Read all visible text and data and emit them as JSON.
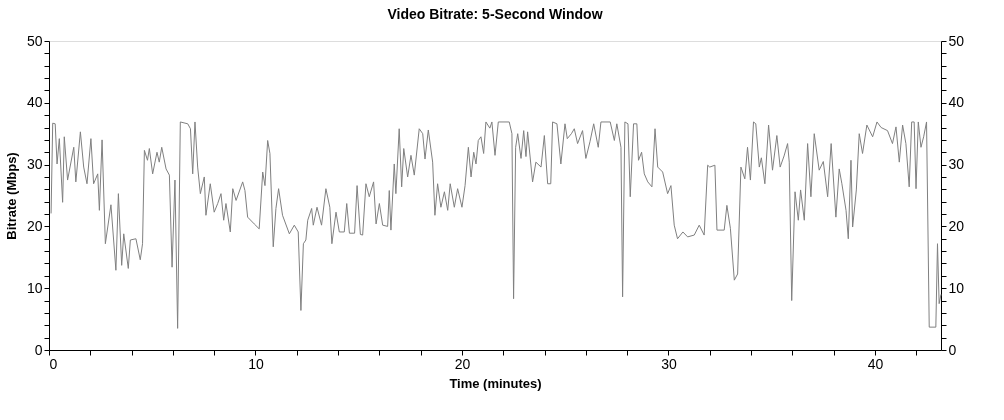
{
  "chart_data": {
    "type": "line",
    "title": "Video Bitrate: 5-Second Window",
    "xlabel": "Time (minutes)",
    "ylabel": "Bitrate (Mbps)",
    "xlim": [
      0,
      43.2
    ],
    "ylim": [
      0,
      50
    ],
    "y2lim": [
      0,
      50
    ],
    "xticks": [
      0,
      {
        "value": 2,
        "label": null
      },
      {
        "value": 4,
        "label": null
      },
      {
        "value": 6,
        "label": null
      },
      {
        "value": 8,
        "label": null
      },
      10,
      {
        "value": 12,
        "label": null
      },
      {
        "value": 14,
        "label": null
      },
      {
        "value": 16,
        "label": null
      },
      {
        "value": 18,
        "label": null
      },
      20,
      {
        "value": 22,
        "label": null
      },
      {
        "value": 24,
        "label": null
      },
      {
        "value": 26,
        "label": null
      },
      {
        "value": 28,
        "label": null
      },
      30,
      {
        "value": 32,
        "label": null
      },
      {
        "value": 34,
        "label": null
      },
      {
        "value": 36,
        "label": null
      },
      {
        "value": 38,
        "label": null
      },
      40,
      {
        "value": 42,
        "label": null
      }
    ],
    "yticks": [
      0,
      {
        "value": 2,
        "label": null
      },
      {
        "value": 4,
        "label": null
      },
      {
        "value": 6,
        "label": null
      },
      {
        "value": 8,
        "label": null
      },
      10,
      {
        "value": 12,
        "label": null
      },
      {
        "value": 14,
        "label": null
      },
      {
        "value": 16,
        "label": null
      },
      {
        "value": 18,
        "label": null
      },
      20,
      {
        "value": 22,
        "label": null
      },
      {
        "value": 24,
        "label": null
      },
      {
        "value": 26,
        "label": null
      },
      {
        "value": 28,
        "label": null
      },
      30,
      {
        "value": 32,
        "label": null
      },
      {
        "value": 34,
        "label": null
      },
      {
        "value": 36,
        "label": null
      },
      {
        "value": 38,
        "label": null
      },
      40,
      {
        "value": 42,
        "label": null
      },
      {
        "value": 44,
        "label": null
      },
      {
        "value": 46,
        "label": null
      },
      {
        "value": 48,
        "label": null
      },
      50
    ],
    "y2ticks": [
      0,
      {
        "value": 2,
        "label": null
      },
      {
        "value": 4,
        "label": null
      },
      {
        "value": 6,
        "label": null
      },
      {
        "value": 8,
        "label": null
      },
      10,
      {
        "value": 12,
        "label": null
      },
      {
        "value": 14,
        "label": null
      },
      {
        "value": 16,
        "label": null
      },
      {
        "value": 18,
        "label": null
      },
      20,
      {
        "value": 22,
        "label": null
      },
      {
        "value": 24,
        "label": null
      },
      {
        "value": 26,
        "label": null
      },
      {
        "value": 28,
        "label": null
      },
      30,
      {
        "value": 32,
        "label": null
      },
      {
        "value": 34,
        "label": null
      },
      {
        "value": 36,
        "label": null
      },
      {
        "value": 38,
        "label": null
      },
      40,
      {
        "value": 42,
        "label": null
      },
      {
        "value": 44,
        "label": null
      },
      {
        "value": 46,
        "label": null
      },
      {
        "value": 48,
        "label": null
      },
      50
    ],
    "grid": false,
    "legend": false,
    "marker": "none",
    "line_style": "solid",
    "series": [
      {
        "color": "#808080",
        "x": [
          0.1,
          0.18,
          0.3,
          0.39,
          0.5,
          0.66,
          0.74,
          0.9,
          1.2,
          1.3,
          1.52,
          1.68,
          1.84,
          2.03,
          2.16,
          2.36,
          2.44,
          2.57,
          2.73,
          3.0,
          3.24,
          3.36,
          3.52,
          3.62,
          3.84,
          3.94,
          4.21,
          4.42,
          4.53,
          4.62,
          4.77,
          4.86,
          5.02,
          5.23,
          5.34,
          5.46,
          5.67,
          5.83,
          5.96,
          6.1,
          6.23,
          6.36,
          6.72,
          6.85,
          6.96,
          7.07,
          7.2,
          7.33,
          7.52,
          7.6,
          7.81,
          8.0,
          8.17,
          8.33,
          8.46,
          8.57,
          8.78,
          8.9,
          9.06,
          9.38,
          9.49,
          9.62,
          9.94,
          10.18,
          10.35,
          10.46,
          10.59,
          10.7,
          10.86,
          10.99,
          11.12,
          11.31,
          11.64,
          11.88,
          12.07,
          12.2,
          12.32,
          12.44,
          12.53,
          12.72,
          12.8,
          12.98,
          13.2,
          13.41,
          13.6,
          13.7,
          13.9,
          14.06,
          14.3,
          14.42,
          14.55,
          14.8,
          14.92,
          15.08,
          15.19,
          15.35,
          15.51,
          15.72,
          15.84,
          16.0,
          16.16,
          16.4,
          16.48,
          16.56,
          16.72,
          16.8,
          16.96,
          17.08,
          17.18,
          17.37,
          17.53,
          17.69,
          17.93,
          18.1,
          18.21,
          18.37,
          18.58,
          18.69,
          18.82,
          18.98,
          19.15,
          19.31,
          19.43,
          19.63,
          19.79,
          20.0,
          20.15,
          20.31,
          20.44,
          20.57,
          20.68,
          20.79,
          20.92,
          21.05,
          21.16,
          21.35,
          21.45,
          21.6,
          21.76,
          22.29,
          22.42,
          22.5,
          22.6,
          22.7,
          22.86,
          22.99,
          23.1,
          23.18,
          23.42,
          23.58,
          23.83,
          23.99,
          24.15,
          24.3,
          24.39,
          24.6,
          24.79,
          24.99,
          25.1,
          25.3,
          25.44,
          25.6,
          25.84,
          26.0,
          26.2,
          26.38,
          26.6,
          26.73,
          27.18,
          27.38,
          27.5,
          27.7,
          27.78,
          27.89,
          28.04,
          28.15,
          28.31,
          28.47,
          28.55,
          28.7,
          28.83,
          29.0,
          29.2,
          29.35,
          29.48,
          29.72,
          29.96,
          30.12,
          30.28,
          30.44,
          30.7,
          30.93,
          31.25,
          31.49,
          31.73,
          31.9,
          32.0,
          32.25,
          32.35,
          32.7,
          32.83,
          33.0,
          33.19,
          33.35,
          33.51,
          33.7,
          33.83,
          33.97,
          34.12,
          34.23,
          34.4,
          34.5,
          34.67,
          34.85,
          35.04,
          35.25,
          35.41,
          35.6,
          35.77,
          35.85,
          35.97,
          36.13,
          36.29,
          36.4,
          36.58,
          36.74,
          36.9,
          37.06,
          37.3,
          37.5,
          37.71,
          37.88,
          38.11,
          38.27,
          38.4,
          38.6,
          38.71,
          38.84,
          38.92,
          39.1,
          39.24,
          39.4,
          39.61,
          39.89,
          40.1,
          40.3,
          40.61,
          40.85,
          41.02,
          41.18,
          41.34,
          41.5,
          41.66,
          41.78,
          41.9,
          41.99,
          42.1,
          42.23,
          42.36,
          42.5,
          42.63,
          42.95,
          43.03,
          43.11,
          43.2
        ],
        "values": [
          22.1,
          36.7,
          36.6,
          30.1,
          34.2,
          23.9,
          34.5,
          27.5,
          32.8,
          27.2,
          35.3,
          29.6,
          26.9,
          34.2,
          26.9,
          28.5,
          22.6,
          34.0,
          17.2,
          23.5,
          12.9,
          25.3,
          13.7,
          18.8,
          13.2,
          17.8,
          18.0,
          14.6,
          17.2,
          32.3,
          30.7,
          32.6,
          28.5,
          32.0,
          30.4,
          32.8,
          29.3,
          28.3,
          13.4,
          27.5,
          3.5,
          36.9,
          36.6,
          35.8,
          28.5,
          36.9,
          29.6,
          25.3,
          28.0,
          21.8,
          26.9,
          22.3,
          23.7,
          25.3,
          21.0,
          23.7,
          19.1,
          26.1,
          24.2,
          27.2,
          25.8,
          21.5,
          20.4,
          19.6,
          28.8,
          26.6,
          33.9,
          31.8,
          16.7,
          22.9,
          26.1,
          21.8,
          18.8,
          20.2,
          19.1,
          6.4,
          17.2,
          17.8,
          21.0,
          22.9,
          20.2,
          23.1,
          20.2,
          26.1,
          23.1,
          17.2,
          22.3,
          19.1,
          19.1,
          23.7,
          18.9,
          18.9,
          26.6,
          18.7,
          18.6,
          26.9,
          24.8,
          27.2,
          20.4,
          23.7,
          20.2,
          20.0,
          25.8,
          19.4,
          30.1,
          25.3,
          35.8,
          26.4,
          32.6,
          28.0,
          31.5,
          28.3,
          35.8,
          35.0,
          30.9,
          35.6,
          30.4,
          21.8,
          26.9,
          23.1,
          25.6,
          22.6,
          26.9,
          23.1,
          26.1,
          23.1,
          26.6,
          32.8,
          28.0,
          32.0,
          30.1,
          33.9,
          34.5,
          31.8,
          36.9,
          35.9,
          36.9,
          31.5,
          36.9,
          36.9,
          35.0,
          8.3,
          32.8,
          35.0,
          31.0,
          35.5,
          31.3,
          35.3,
          27.2,
          30.4,
          29.6,
          34.7,
          26.9,
          26.9,
          36.9,
          36.6,
          30.1,
          36.6,
          34.2,
          35.0,
          35.8,
          33.4,
          35.5,
          31.0,
          33.7,
          36.6,
          32.8,
          36.9,
          36.9,
          33.9,
          36.6,
          32.8,
          8.6,
          36.9,
          36.6,
          24.8,
          36.6,
          36.6,
          30.7,
          32.0,
          28.5,
          27.2,
          26.4,
          35.8,
          29.6,
          28.8,
          25.3,
          26.6,
          20.2,
          18.0,
          19.1,
          18.3,
          18.6,
          20.2,
          18.6,
          29.9,
          29.6,
          29.9,
          19.4,
          19.4,
          23.4,
          19.7,
          11.3,
          12.3,
          29.6,
          27.7,
          32.8,
          27.5,
          36.9,
          36.6,
          29.6,
          31.1,
          26.9,
          36.4,
          29.1,
          34.7,
          29.6,
          31.4,
          33.4,
          30.4,
          8.0,
          25.6,
          21.0,
          25.9,
          21.0,
          33.4,
          24.8,
          35.0,
          29.1,
          30.5,
          24.8,
          33.4,
          21.5,
          29.3,
          26.9,
          22.6,
          18.0,
          30.7,
          19.9,
          25.9,
          35.0,
          31.8,
          36.4,
          34.5,
          36.9,
          36.0,
          35.5,
          33.4,
          36.1,
          30.4,
          36.4,
          33.4,
          26.4,
          36.9,
          36.9,
          26.1,
          36.9,
          32.8,
          34.5,
          36.9,
          3.7,
          3.7,
          17.2,
          7.5,
          9.0
        ]
      }
    ]
  }
}
